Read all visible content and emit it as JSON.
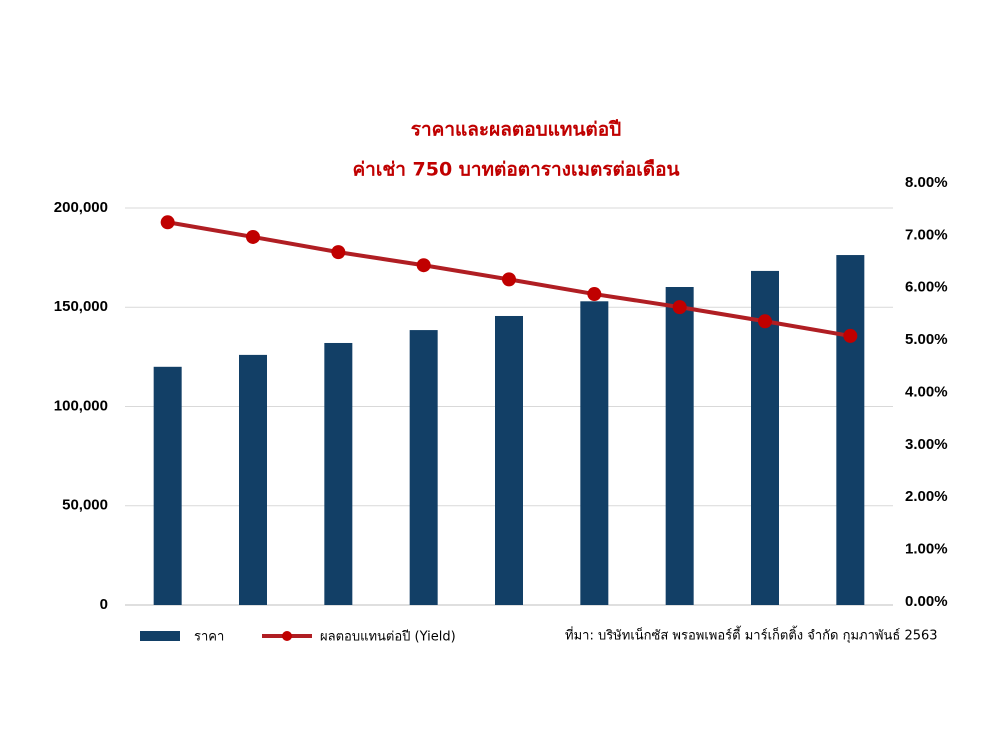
{
  "chart_data": {
    "type": "bar-line",
    "title": "ราคาและผลตอบแทนต่อปี",
    "subtitle": "ค่าเช่า 750 บาทต่อตารางเมตรต่อเดือน",
    "categories": [
      null,
      null,
      null,
      null,
      null,
      null,
      null,
      null,
      null
    ],
    "series": [
      {
        "name": "ราคา",
        "type": "bar",
        "color": "#123f66",
        "values": [
          120000,
          126000,
          132000,
          138500,
          145600,
          153000,
          160200,
          168300,
          176300
        ]
      },
      {
        "name": "ผลตอบแทนต่อปี (Yield)",
        "type": "line",
        "axis": "y2",
        "color": "#b01e23",
        "marker_color": "#c00000",
        "values": [
          7.25,
          6.97,
          6.68,
          6.43,
          6.16,
          5.88,
          5.63,
          5.36,
          5.08
        ]
      }
    ],
    "ylim": [
      0,
      200000
    ],
    "yticks": [
      0,
      {
        "value": 50000,
        "label": "50,000"
      },
      {
        "value": 100000,
        "label": "100,000"
      },
      {
        "value": 150000,
        "label": "150,000"
      },
      {
        "value": 200000,
        "label": "200,000"
      }
    ],
    "y2lim": [
      0,
      8
    ],
    "y2ticks": [
      {
        "value": 0,
        "label": "0.00%"
      },
      {
        "value": 1,
        "label": "1.00%"
      },
      {
        "value": 2,
        "label": "2.00%"
      },
      {
        "value": 3,
        "label": "3.00%"
      },
      {
        "value": 4,
        "label": "4.00%"
      },
      {
        "value": 5,
        "label": "5.00%"
      },
      {
        "value": 6,
        "label": "6.00%"
      },
      {
        "value": 7,
        "label": "7.00%"
      },
      {
        "value": 8,
        "label": "8.00%"
      }
    ],
    "grid": true,
    "source": "ที่มา: บริษัทเน็กซัส พรอพเพอร์ตี้ มาร์เก็ตติ้ง จำกัด กุมภาพันธ์ 2563"
  }
}
